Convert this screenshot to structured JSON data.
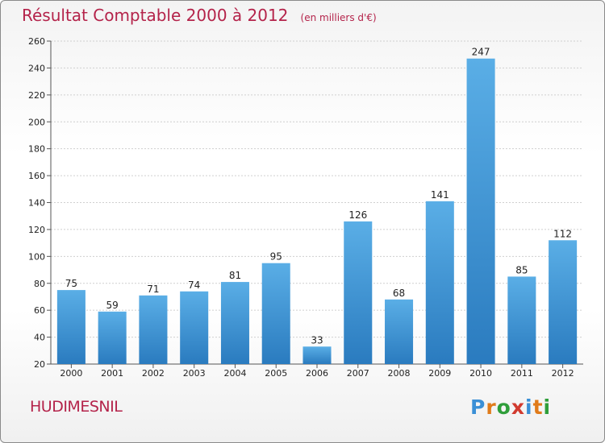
{
  "header": {
    "title": "Résultat Comptable 2000 à 2012",
    "unit_note": "(en milliers d'€)"
  },
  "commune": "HUDIMESNIL",
  "logo": {
    "text": "Proxiti"
  },
  "colors": {
    "title": "#b4234a",
    "bar_light": "#5aaee6",
    "bar_dark": "#2a7bbf"
  },
  "chart_data": {
    "type": "bar",
    "categories": [
      "2000",
      "2001",
      "2002",
      "2003",
      "2004",
      "2005",
      "2006",
      "2007",
      "2008",
      "2009",
      "2010",
      "2011",
      "2012"
    ],
    "values": [
      75,
      59,
      71,
      74,
      81,
      95,
      33,
      126,
      68,
      141,
      247,
      85,
      112
    ],
    "ylim": [
      20,
      260
    ],
    "yticks": [
      20,
      40,
      60,
      80,
      100,
      120,
      140,
      160,
      180,
      200,
      220,
      240,
      260
    ],
    "grid": true,
    "legend": "none"
  }
}
